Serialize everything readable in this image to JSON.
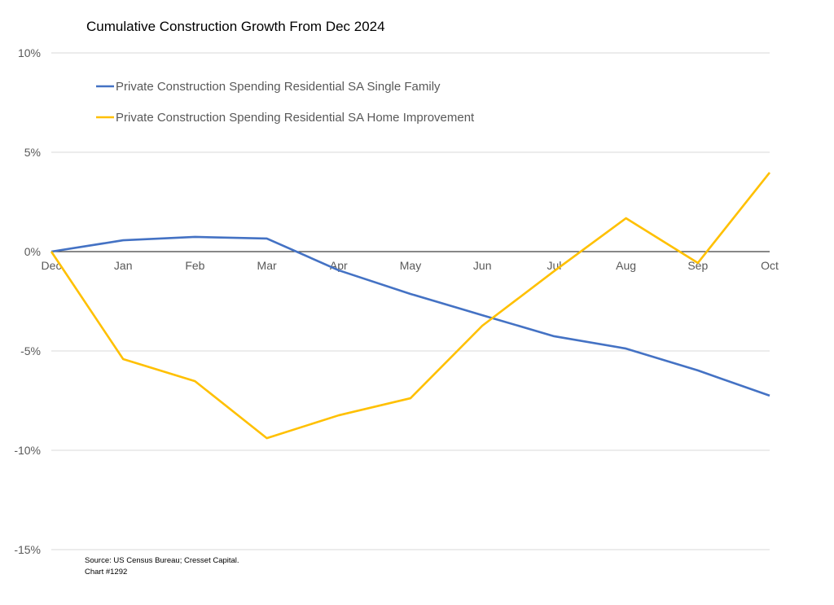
{
  "chart_data": {
    "type": "line",
    "title": "Cumulative Construction Growth From Dec 2024",
    "xlabel": "",
    "ylabel": "",
    "categories": [
      "Dec",
      "Jan",
      "Feb",
      "Mar",
      "Apr",
      "May",
      "Jun",
      "Jul",
      "Aug",
      "Sep",
      "Oct"
    ],
    "ylim": [
      -15,
      10
    ],
    "yticks": [
      "10%",
      "5%",
      "0%",
      "-5%",
      "-10%",
      "-15%"
    ],
    "ytick_values": [
      10,
      5,
      0,
      -5,
      -10,
      -15
    ],
    "grid": true,
    "legend_position": "top-left",
    "series": [
      {
        "name": "Private Construction Spending Residential SA Single Family",
        "color": "#4472C4",
        "values": [
          0,
          0.57,
          0.74,
          0.66,
          -0.94,
          -2.13,
          -3.2,
          -4.26,
          -4.88,
          -5.98,
          -7.25
        ]
      },
      {
        "name": "Private Construction Spending Residential SA Home Improvement",
        "color": "#FFC000",
        "values": [
          0,
          -5.41,
          -6.52,
          -9.39,
          -8.24,
          -7.38,
          -3.73,
          -0.98,
          1.68,
          -0.57,
          3.98
        ]
      }
    ]
  },
  "source": {
    "line1": "Source: US Census Bureau; Cresset Capital.",
    "line2": "Chart #1292"
  }
}
